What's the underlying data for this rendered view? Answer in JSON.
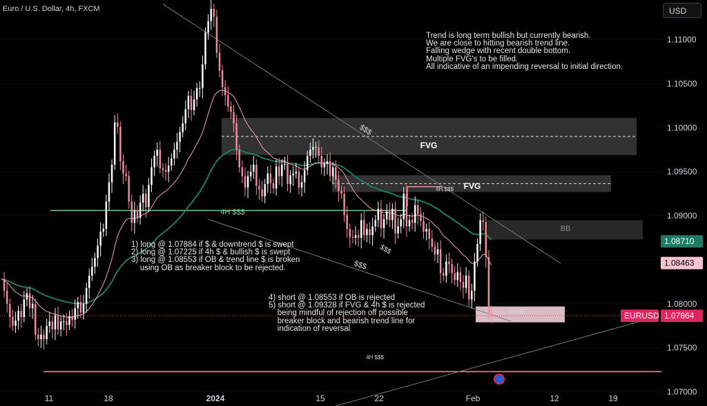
{
  "header": {
    "title": "Euro / U.S. Dollar, 4h, FXCM",
    "currency_button": "USD"
  },
  "notes": {
    "summary": [
      "Trend is long term bullish but currently bearish.",
      "We are close to hitting bearish trend line.",
      "Falling wedge with recent double bottom.",
      "Multiple FVG's to be filled.",
      "All indicative of an impending reversal to initial direction."
    ],
    "longs": [
      "1) long @ 1.07884 if $ & downtrend $ is swept",
      "2) long @ 1.07225 if 4h $ & bullish $ is swept",
      "3) long @ 1.08553 if OB & trend line $ is broken",
      "    using OB as breaker block to be rejected."
    ],
    "shorts": [
      "4) short @ 1.08553 if OB is rejected",
      "5) short @ 1.09328 if FVG & 4h $ is rejected",
      "    being mindful of rejection off possible",
      "    breaker block and bearish trend line for",
      "    indication of reversal"
    ]
  },
  "annotations": {
    "fvg_upper": "FVG",
    "fvg_lower": "FVG",
    "bb": "BB",
    "liq_top_trend": "$$$",
    "liq_4h_mid": "4H $$$",
    "liq_4h_upper": "4H $$$",
    "liq_low_left": "$$$",
    "liq_low_mid": "$$$",
    "liq_4h_bottom_box": "4H $$$",
    "liq_4h_bottom_line": "4H $$$"
  },
  "price_tags": {
    "green": {
      "text": "1.08710",
      "color": "#1e7b64"
    },
    "pink": {
      "text": "1.08463",
      "color": "#f5c4d0"
    },
    "symbol": {
      "text": "EURUSD",
      "color": "#e0245e"
    },
    "last": {
      "text": "1.07864",
      "color": "#e0245e"
    }
  },
  "chart_data": {
    "type": "candlestick",
    "symbol": "EURUSD",
    "timeframe": "4h",
    "y_ticks": [
      1.11,
      1.105,
      1.1,
      1.095,
      1.09,
      1.085,
      1.08,
      1.075,
      1.07
    ],
    "y_tick_labels": [
      "1.11000",
      "1.10500",
      "1.10000",
      "1.09500",
      "1.09000",
      "",
      "1.08000",
      "1.07500",
      "1.07000"
    ],
    "ylim": [
      1.0684,
      1.1145
    ],
    "x_ticks": [
      "11",
      "18",
      "2024",
      "15",
      "22",
      "Feb",
      "12",
      "19"
    ],
    "close_path": [
      1.0828,
      1.0815,
      1.08,
      1.0785,
      1.0775,
      1.0781,
      1.0792,
      1.0785,
      1.0805,
      1.0812,
      1.0795,
      1.08,
      1.0765,
      1.076,
      1.0765,
      1.076,
      1.0775,
      1.078,
      1.0771,
      1.0787,
      1.0771,
      1.078,
      1.078,
      1.0776,
      1.0786,
      1.0782,
      1.0795,
      1.0802,
      1.079,
      1.08,
      1.0818,
      1.0832,
      1.0842,
      1.0852,
      1.0866,
      1.0882,
      1.0885,
      1.0916,
      1.0938,
      1.0958,
      1.1006,
      1.1001,
      1.0962,
      1.0948,
      1.0945,
      1.0916,
      1.0892,
      1.0906,
      1.0898,
      1.0915,
      1.0925,
      1.091,
      1.0935,
      1.0955,
      1.0968,
      1.0975,
      1.0954,
      1.0952,
      1.095,
      1.0957,
      1.0965,
      1.0975,
      1.0984,
      1.0995,
      1.1005,
      1.1021,
      1.1036,
      1.102,
      1.1032,
      1.1045,
      1.1045,
      1.1072,
      1.1108,
      1.1121,
      1.1135,
      1.1126,
      1.1085,
      1.1065,
      1.1046,
      1.1037,
      1.1024,
      1.1018,
      1.1005,
      1.0975,
      1.0955,
      1.0945,
      1.0932,
      1.0945,
      1.095,
      1.0958,
      1.0934,
      1.093,
      1.0922,
      1.0936,
      1.0948,
      1.0937,
      1.0931,
      1.0956,
      1.0945,
      1.0958,
      1.0959,
      1.0936,
      1.0946,
      1.0948,
      1.095,
      1.0932,
      1.0938,
      1.0952,
      1.0968,
      1.0975,
      1.0978,
      1.0978,
      1.0968,
      1.0955,
      1.0959,
      1.0962,
      1.0945,
      1.0955,
      1.0941,
      1.0928,
      1.0925,
      1.0901,
      1.0885,
      1.0876,
      1.0875,
      1.0878,
      1.0875,
      1.0895,
      1.0878,
      1.0885,
      1.0878,
      1.0888,
      1.0895,
      1.0908,
      1.0886,
      1.0896,
      1.0905,
      1.0895,
      1.0908,
      1.088,
      1.0888,
      1.0896,
      1.0925,
      1.0888,
      1.0895,
      1.0892,
      1.0912,
      1.0902,
      1.0894,
      1.0882,
      1.0885,
      1.0874,
      1.0865,
      1.0856,
      1.0862,
      1.0835,
      1.0832,
      1.0848,
      1.0845,
      1.0835,
      1.0827,
      1.0836,
      1.0825,
      1.0818,
      1.0832,
      1.0805,
      1.0815,
      1.0848,
      1.0868,
      1.0895,
      1.0893,
      1.0853,
      1.0788,
      1.0786
    ],
    "ma_fast_color": "#f5a0b8",
    "ma_slow_color": "#1e7b64",
    "levels": [
      {
        "name": "4H $$$ line",
        "price": 1.0723,
        "color": "#f28c9f"
      },
      {
        "name": "green 4H $$$ line",
        "price": 1.0906,
        "color": "#6fcf83"
      },
      {
        "name": "current price",
        "price": 1.07864,
        "color": "#e0245e"
      }
    ],
    "zones": [
      {
        "label": "FVG",
        "top": 1.1011,
        "bottom": 1.0969,
        "color": "#3b3b3b"
      },
      {
        "label": "FVG",
        "top": 1.0946,
        "bottom": 1.0927,
        "color": "#3b3b3b"
      },
      {
        "label": "BB",
        "top": 1.0895,
        "bottom": 1.0873,
        "color": "#2f2f2f"
      },
      {
        "label": "4H $$$",
        "top": 1.0797,
        "bottom": 1.0779,
        "color": "#e8c6cf"
      }
    ],
    "last_price": 1.07864
  }
}
